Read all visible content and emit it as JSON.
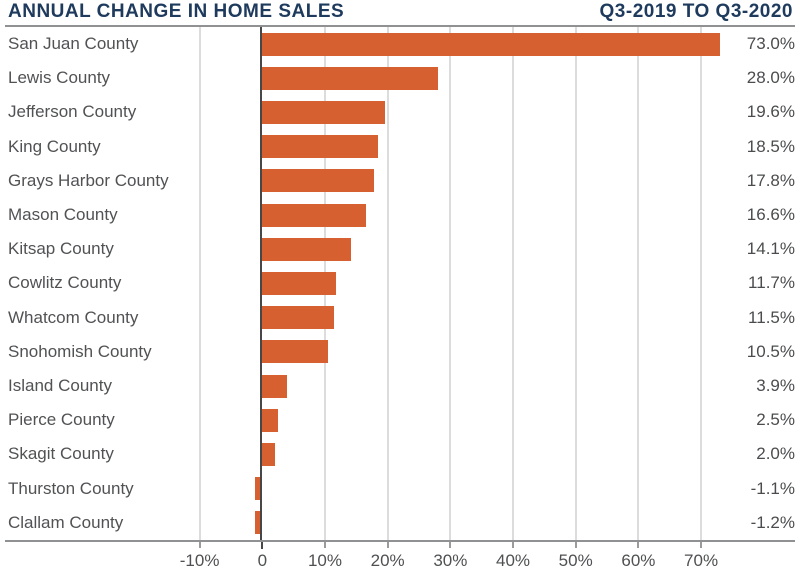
{
  "header": {
    "title": "ANNUAL CHANGE IN HOME SALES",
    "subtitle": "Q3-2019 TO Q3-2020"
  },
  "colors": {
    "bar": "#D6602F",
    "title": "#1E3A5C",
    "gridline": "#DCDCDC",
    "zero_line": "#474747",
    "axis_line": "#8F9193",
    "county_label": "#515254",
    "value_label": "#4B4C4E",
    "tick_label": "#4F5052"
  },
  "chart_data": {
    "type": "bar",
    "orientation": "horizontal",
    "title": "ANNUAL CHANGE IN HOME SALES",
    "subtitle": "Q3-2019 TO Q3-2020",
    "categories": [
      "San Juan County",
      "Lewis County",
      "Jefferson County",
      "King County",
      "Grays Harbor County",
      "Mason County",
      "Kitsap County",
      "Cowlitz County",
      "Whatcom County",
      "Snohomish County",
      "Island County",
      "Pierce County",
      "Skagit County",
      "Thurston County",
      "Clallam County"
    ],
    "values": [
      73.0,
      28.0,
      19.6,
      18.5,
      17.8,
      16.6,
      14.1,
      11.7,
      11.5,
      10.5,
      3.9,
      2.5,
      2.0,
      -1.1,
      -1.2
    ],
    "value_labels": [
      "73.0%",
      "28.0%",
      "19.6%",
      "18.5%",
      "17.8%",
      "16.6%",
      "14.1%",
      "11.7%",
      "11.5%",
      "10.5%",
      "3.9%",
      "2.5%",
      "2.0%",
      "-1.1%",
      "-1.2%"
    ],
    "xlabel": "",
    "ylabel": "",
    "xlim": [
      -10,
      77
    ],
    "x_ticks": [
      -10,
      0,
      10,
      20,
      30,
      40,
      50,
      60,
      70
    ],
    "x_tick_labels": [
      "-10%",
      "0",
      "10%",
      "20%",
      "30%",
      "40%",
      "50%",
      "60%",
      "70%"
    ],
    "grid": true,
    "legend": false
  }
}
